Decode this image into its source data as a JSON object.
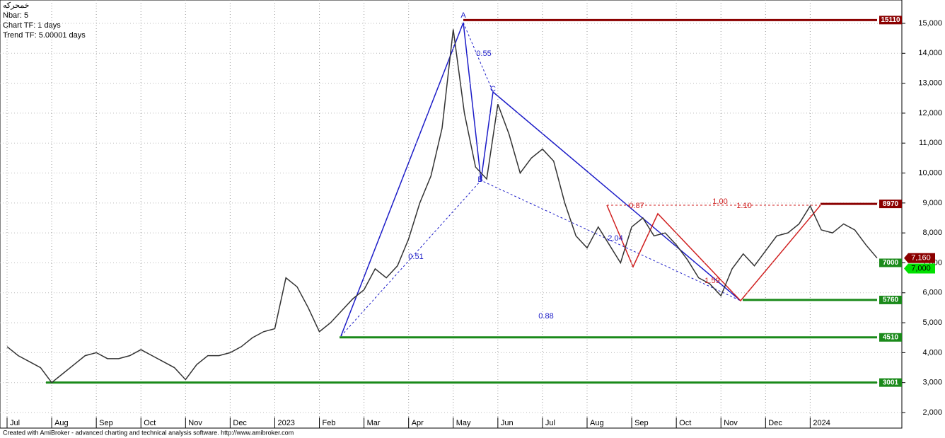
{
  "chart_data": {
    "type": "line",
    "header": [
      "خمحرکه",
      "Nbar: 5",
      "Chart TF: 1 days",
      "Trend TF: 5.00001 days"
    ],
    "footer": "Created with AmiBroker - advanced charting and technical analysis software. http://www.amibroker.com",
    "categories": [
      "Jul",
      null,
      null,
      null,
      "Aug",
      null,
      null,
      null,
      "Sep",
      null,
      null,
      null,
      "Oct",
      null,
      null,
      null,
      "Nov",
      null,
      null,
      null,
      "Dec",
      null,
      null,
      null,
      "2023",
      null,
      null,
      null,
      "Feb",
      null,
      null,
      null,
      "Mar",
      null,
      null,
      null,
      "Apr",
      null,
      null,
      null,
      "May",
      null,
      null,
      null,
      "Jun",
      null,
      null,
      null,
      "Jul",
      null,
      null,
      null,
      "Aug",
      null,
      null,
      null,
      "Sep",
      null,
      null,
      null,
      "Oct",
      null,
      null,
      null,
      "Nov",
      null,
      null,
      null,
      "Dec",
      null,
      null,
      null,
      "2024",
      null,
      null,
      null,
      null,
      null,
      null
    ],
    "values": [
      4200,
      3900,
      3700,
      3500,
      3000,
      3300,
      3600,
      3900,
      4000,
      3800,
      3800,
      3900,
      4100,
      3900,
      3700,
      3500,
      3100,
      3600,
      3900,
      3900,
      4000,
      4200,
      4500,
      4700,
      4800,
      6500,
      6200,
      5500,
      4700,
      5000,
      5400,
      5800,
      6100,
      6800,
      6500,
      6900,
      7800,
      9000,
      9900,
      11500,
      14800,
      12000,
      10200,
      9800,
      12300,
      11300,
      10000,
      10500,
      10800,
      10400,
      9000,
      7900,
      7500,
      8200,
      7600,
      7000,
      8200,
      8500,
      7900,
      8000,
      7600,
      7100,
      6500,
      6300,
      5900,
      6800,
      7300,
      6900,
      7400,
      7900,
      8000,
      8300,
      8900,
      8100,
      8000,
      8300,
      8100,
      7600,
      7160
    ],
    "color": "#333333",
    "ylim": [
      1480,
      15780
    ],
    "yticks": [
      {
        "value": 2000,
        "label": "2,000"
      },
      {
        "value": 3000,
        "label": "3,000"
      },
      {
        "value": 4000,
        "label": "4,000"
      },
      {
        "value": 5000,
        "label": "5,000"
      },
      {
        "value": 6000,
        "label": "6,000"
      },
      {
        "value": 7000,
        "label": "7,000"
      },
      {
        "value": 8000,
        "label": "8,000"
      },
      {
        "value": 9000,
        "label": "9,000"
      },
      {
        "value": 10000,
        "label": "10,000"
      },
      {
        "value": 11000,
        "label": "11,000"
      },
      {
        "value": 12000,
        "label": "12,000"
      },
      {
        "value": 13000,
        "label": "13,000"
      },
      {
        "value": 14000,
        "label": "14,000"
      },
      {
        "value": 15000,
        "label": "15,000"
      }
    ],
    "grid": true,
    "levels": [
      {
        "value": 15110,
        "color": "#8b0000"
      },
      {
        "value": 8970,
        "color": "#8b0000"
      },
      {
        "value": 7000,
        "color": "#1a8a1a"
      },
      {
        "value": 5760,
        "color": "#1a8a1a"
      },
      {
        "value": 4510,
        "color": "#1a8a1a"
      },
      {
        "value": 3001,
        "color": "#1a8a1a"
      }
    ],
    "price_tags": [
      {
        "value": 7160,
        "label": "7,160",
        "color": "#8b0000"
      },
      {
        "value": 7000,
        "label": "7,000",
        "color": "#00e000"
      }
    ],
    "annotations": [
      "0.55",
      "0.51",
      "0.88",
      "1.00",
      "1.10",
      "0.87",
      "2.04",
      "1.59",
      "A",
      "B",
      "C"
    ]
  }
}
